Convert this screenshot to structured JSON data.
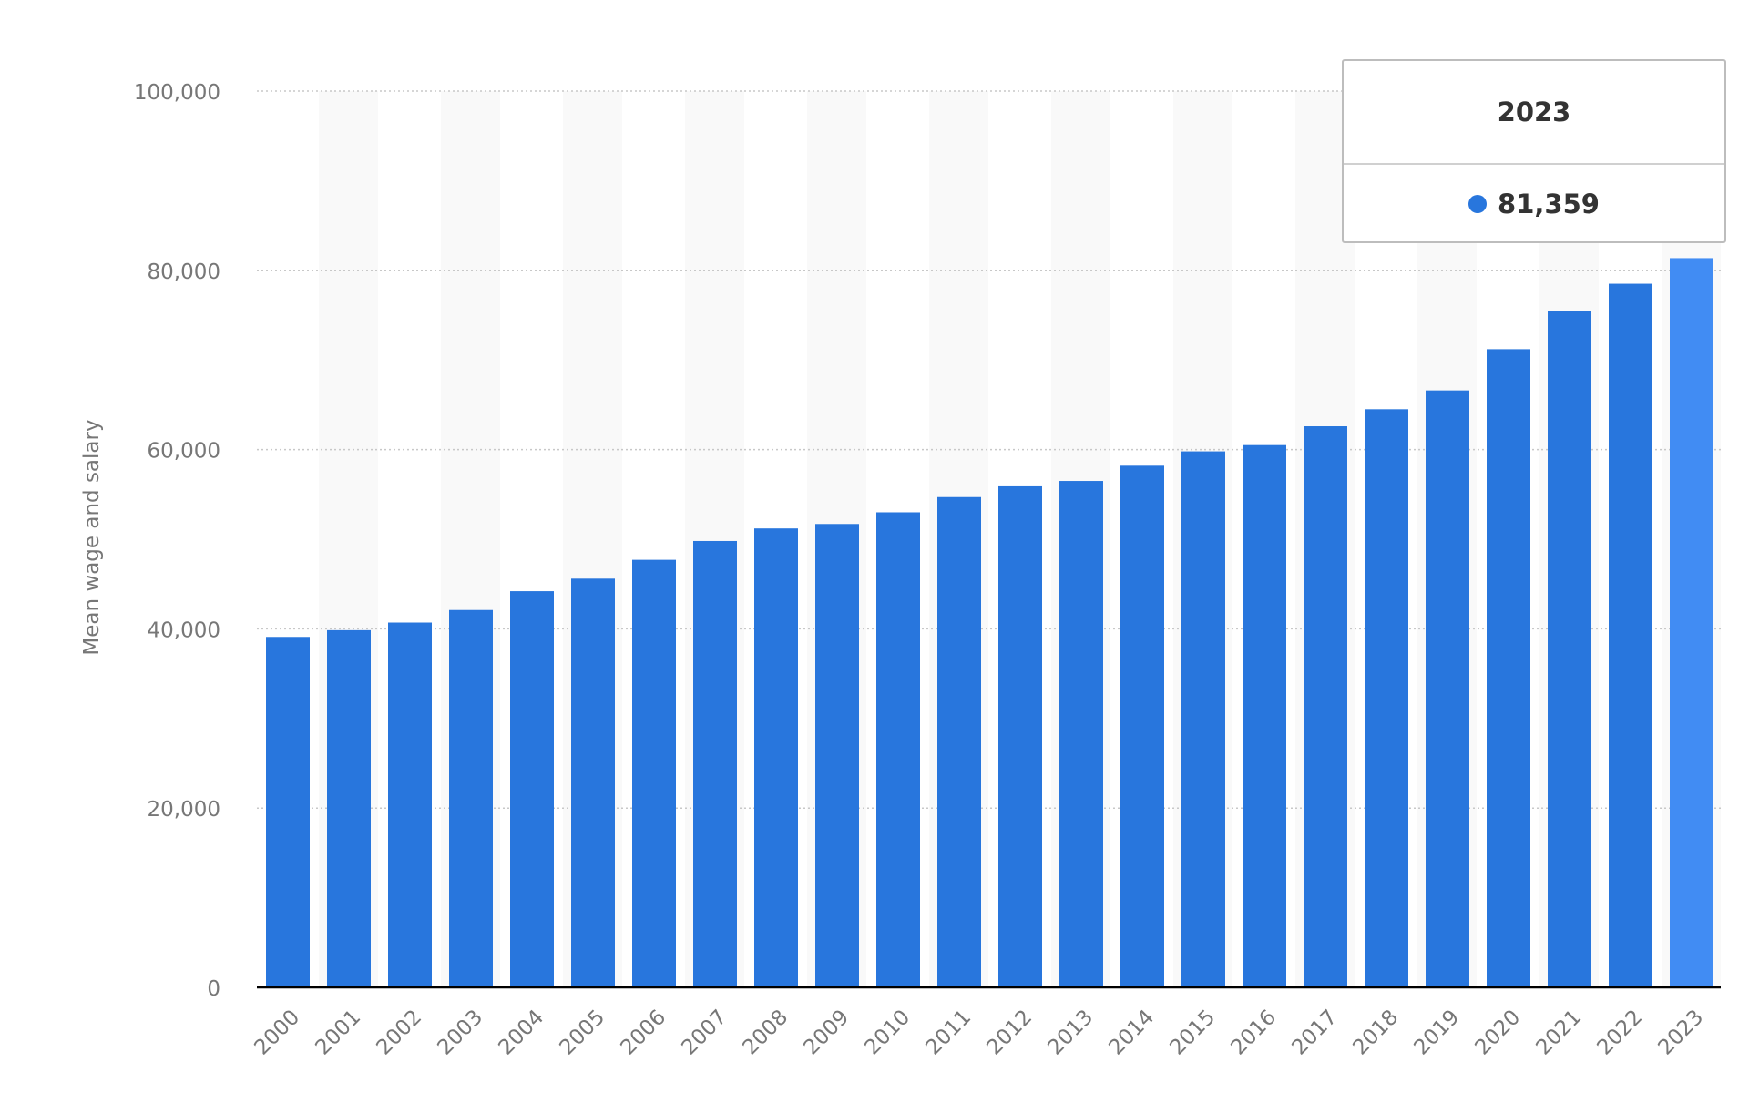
{
  "chart_data": {
    "type": "bar",
    "title": "",
    "xlabel": "",
    "ylabel": "Mean wage and salary",
    "ylim": [
      0,
      100000
    ],
    "yticks": [
      0,
      20000,
      40000,
      60000,
      80000,
      100000
    ],
    "ytick_labels": [
      "0",
      "20,000",
      "40,000",
      "60,000",
      "80,000",
      "100,000"
    ],
    "grid": true,
    "categories": [
      "2000",
      "2001",
      "2002",
      "2003",
      "2004",
      "2005",
      "2006",
      "2007",
      "2008",
      "2009",
      "2010",
      "2011",
      "2012",
      "2013",
      "2014",
      "2015",
      "2016",
      "2017",
      "2018",
      "2019",
      "2020",
      "2021",
      "2022",
      "2023"
    ],
    "values": [
      39100,
      39850,
      40700,
      42100,
      44200,
      45600,
      47700,
      49800,
      51200,
      51700,
      53000,
      54700,
      55900,
      56500,
      58200,
      59800,
      60500,
      62600,
      64500,
      66600,
      71200,
      75500,
      78500,
      81359
    ],
    "highlighted": "2023",
    "colors": {
      "bar": "#2876dd",
      "highlight": "#418cf3",
      "band": "#f9f9f9",
      "grid": "#c8c8c8",
      "axis": "#000000",
      "text": "#777777"
    }
  },
  "tooltip": {
    "title": "2023",
    "value": "81,359"
  }
}
